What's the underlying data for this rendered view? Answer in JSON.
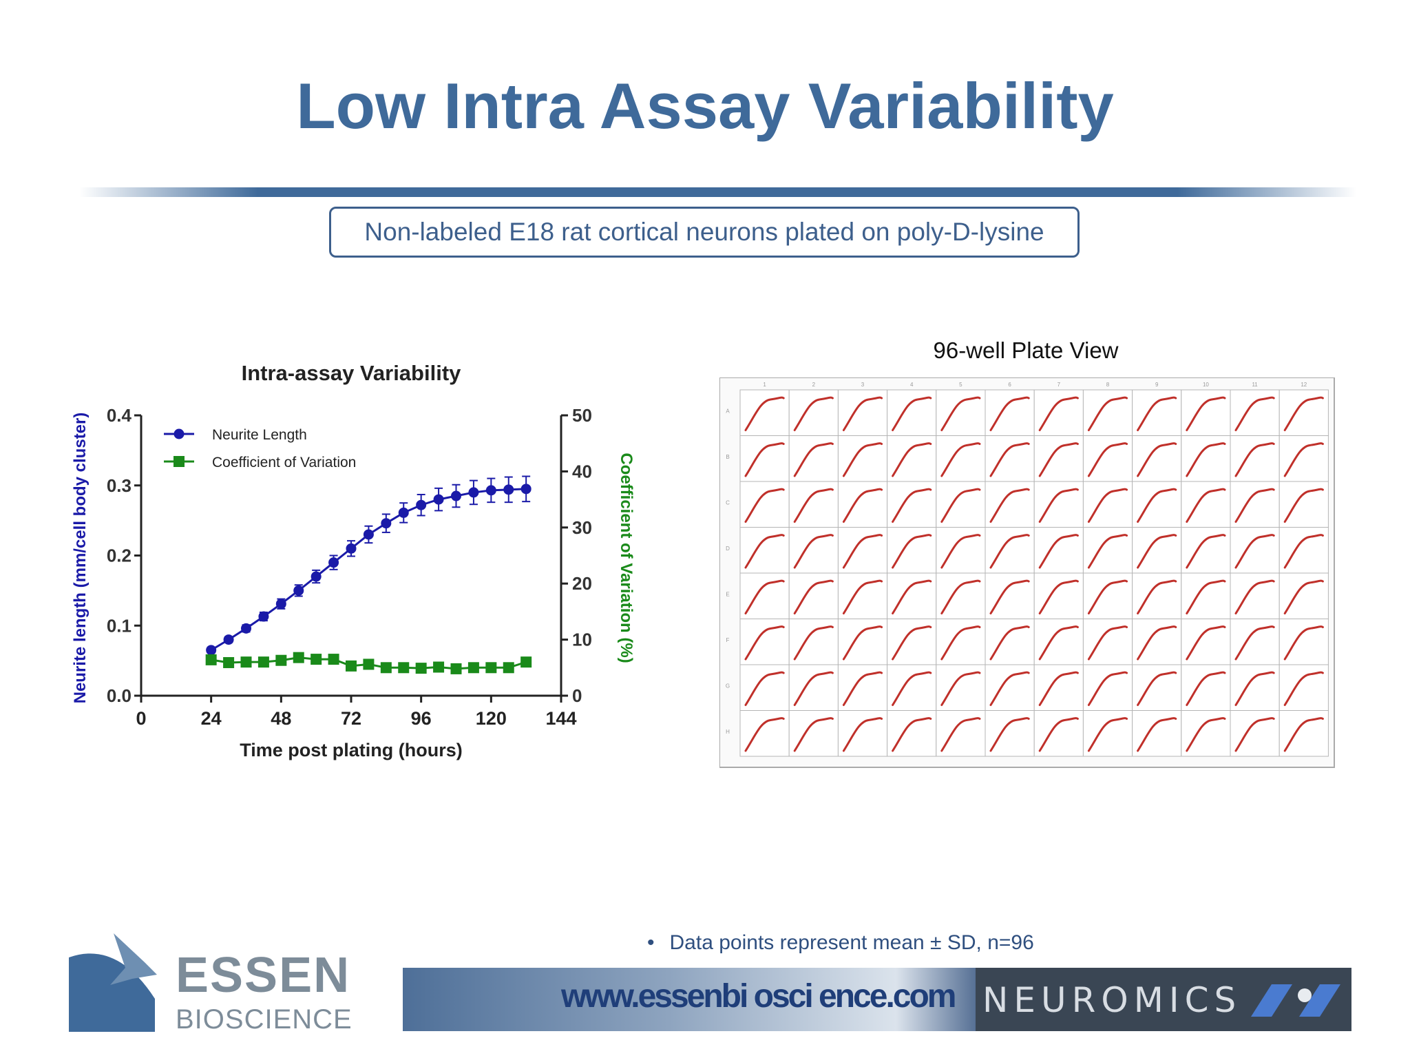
{
  "slide": {
    "title": "Low Intra Assay Variability",
    "subtitle": "Non-labeled E18 rat cortical neurons plated on poly-D-lysine",
    "plate_title": "96-well Plate View",
    "footnote": "Data points represent mean ± SD, n=96",
    "footnote_bullet": "•"
  },
  "footer": {
    "logo_line1": "ESSEN",
    "logo_line2": "BIOSCIENCE",
    "url": "www.essenbi osci ence.com",
    "partner": "NEUROMICS"
  },
  "chart_data": {
    "type": "line",
    "title": "Intra-assay Variability",
    "xlabel": "Time post plating (hours)",
    "ylabel": "Neurite length (mm/cell body cluster)",
    "y2label": "Coefficient of Variation (%)",
    "xlim": [
      0,
      144
    ],
    "ylim": [
      0,
      0.4
    ],
    "y2lim": [
      0,
      50
    ],
    "xticks": [
      "0",
      "24",
      "48",
      "72",
      "96",
      "120",
      "144"
    ],
    "yticks": [
      "0.0",
      "0.1",
      "0.2",
      "0.3",
      "0.4"
    ],
    "y2ticks": [
      "0",
      "10",
      "20",
      "30",
      "40",
      "50"
    ],
    "legend_position": "top-left",
    "grid": false,
    "series": [
      {
        "name": "Neurite Length",
        "axis": "left",
        "color": "#1a1aa8",
        "marker": "circle",
        "x": [
          24,
          30,
          36,
          42,
          48,
          54,
          60,
          66,
          72,
          78,
          84,
          90,
          96,
          102,
          108,
          114,
          120,
          126,
          132
        ],
        "values": [
          0.065,
          0.08,
          0.096,
          0.113,
          0.131,
          0.15,
          0.17,
          0.19,
          0.21,
          0.23,
          0.246,
          0.261,
          0.272,
          0.28,
          0.285,
          0.29,
          0.293,
          0.294,
          0.295
        ],
        "sd": [
          0.004,
          0.004,
          0.005,
          0.006,
          0.007,
          0.008,
          0.009,
          0.01,
          0.011,
          0.012,
          0.013,
          0.014,
          0.015,
          0.016,
          0.016,
          0.017,
          0.017,
          0.018,
          0.018
        ]
      },
      {
        "name": "Coefficient of Variation",
        "axis": "right",
        "color": "#1a8a1a",
        "marker": "square",
        "x": [
          24,
          30,
          36,
          42,
          48,
          54,
          60,
          66,
          72,
          78,
          84,
          90,
          96,
          102,
          108,
          114,
          120,
          126,
          132
        ],
        "values": [
          6.4,
          5.9,
          6.0,
          6.0,
          6.3,
          6.8,
          6.5,
          6.5,
          5.3,
          5.6,
          5.0,
          5.0,
          4.9,
          5.1,
          4.8,
          5.0,
          5.0,
          5.0,
          6.0
        ]
      }
    ]
  },
  "plate": {
    "columns": [
      "1",
      "2",
      "3",
      "4",
      "5",
      "6",
      "7",
      "8",
      "9",
      "10",
      "11",
      "12"
    ],
    "rows": [
      "A",
      "B",
      "C",
      "D",
      "E",
      "F",
      "G",
      "H"
    ],
    "curve_color": "#c0302a"
  }
}
